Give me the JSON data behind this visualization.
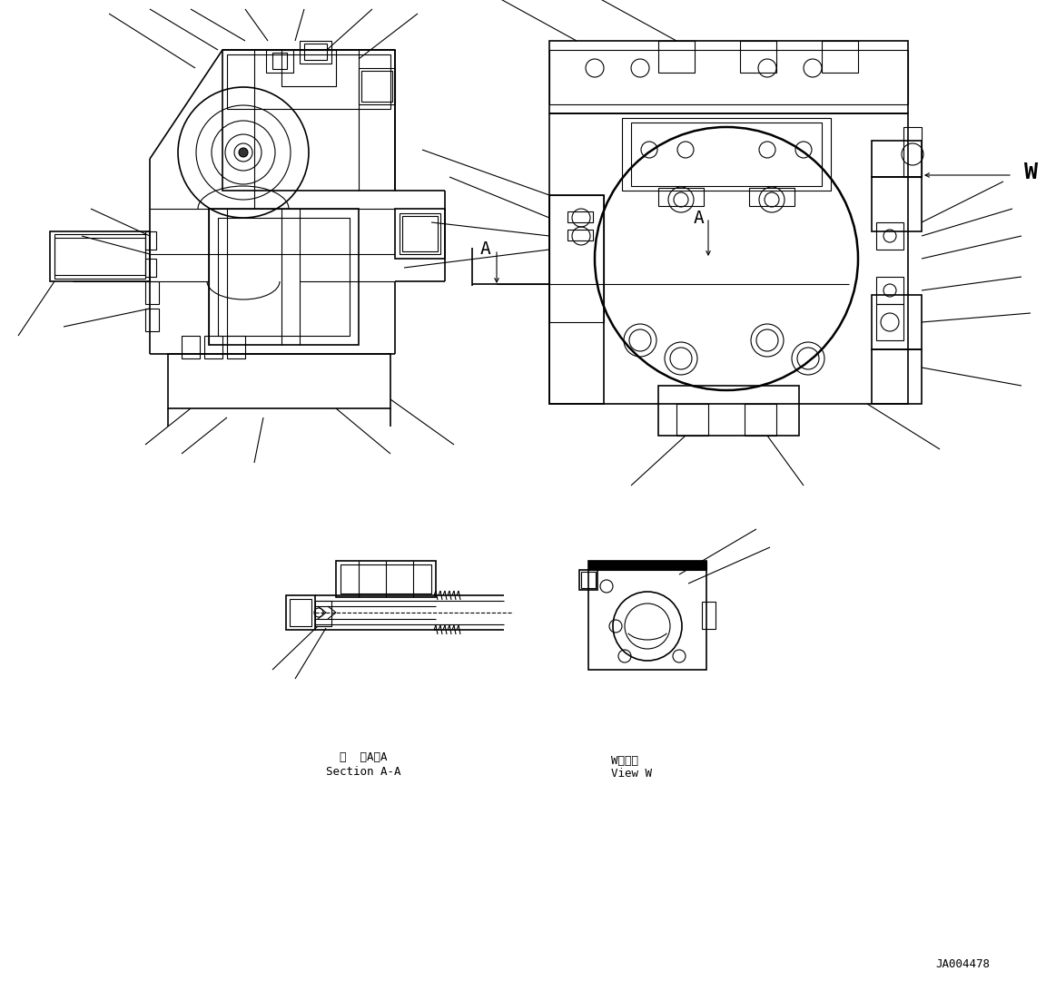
{
  "background_color": "#ffffff",
  "line_color": "#000000",
  "lw": 0.8,
  "lw2": 1.2,
  "lw3": 1.8,
  "fig_width": 11.63,
  "fig_height": 10.92,
  "drawing_number": "JA004478",
  "label_W": "W",
  "label_A": "A",
  "section_line1": "断  面A－A",
  "section_line2": "Section A-A",
  "view_line1": "W　　視",
  "view_line2": "View W"
}
